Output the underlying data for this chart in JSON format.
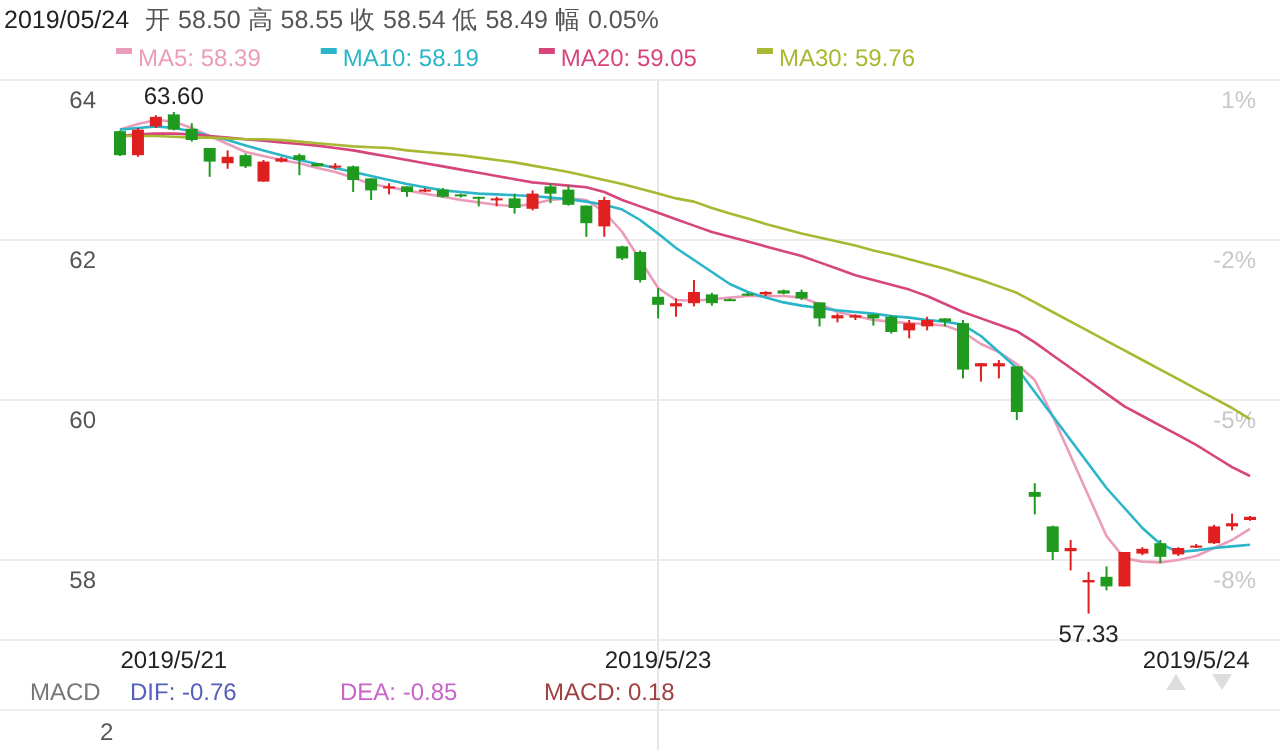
{
  "chart_data": {
    "type": "candlestick",
    "title": "2019/05/24",
    "subtitle": "开 58.50 高 58.55 收 58.54 低 58.49 幅 0.05%",
    "categories": [
      null,
      null,
      null,
      "2019/5/21",
      null,
      null,
      null,
      null,
      null,
      null,
      null,
      null,
      null,
      null,
      null,
      null,
      null,
      null,
      null,
      null,
      null,
      null,
      null,
      null,
      null,
      null,
      null,
      null,
      null,
      null,
      "2019/5/23",
      null,
      null,
      null,
      null,
      null,
      null,
      null,
      null,
      null,
      null,
      null,
      null,
      null,
      null,
      null,
      null,
      null,
      null,
      null,
      null,
      null,
      null,
      null,
      null,
      null,
      null,
      null,
      null,
      null,
      "2019/5/24",
      null,
      null,
      null
    ],
    "ohlc": [
      [
        63.36,
        63.37,
        63.05,
        63.06
      ],
      [
        63.06,
        63.4,
        63.04,
        63.38
      ],
      [
        63.42,
        63.56,
        63.4,
        63.54
      ],
      [
        63.57,
        63.6,
        63.37,
        63.38
      ],
      [
        63.39,
        63.46,
        63.23,
        63.25
      ],
      [
        63.15,
        63.15,
        62.79,
        62.98
      ],
      [
        62.96,
        63.12,
        62.89,
        63.04
      ],
      [
        63.06,
        63.08,
        62.9,
        62.92
      ],
      [
        62.73,
        63.0,
        62.73,
        62.98
      ],
      [
        62.98,
        63.04,
        62.97,
        63.02
      ],
      [
        63.06,
        63.08,
        62.81,
        63.0
      ],
      [
        62.96,
        62.96,
        62.92,
        62.92
      ],
      [
        62.92,
        62.96,
        62.88,
        62.93
      ],
      [
        62.92,
        62.93,
        62.6,
        62.75
      ],
      [
        62.77,
        62.77,
        62.5,
        62.62
      ],
      [
        62.65,
        62.71,
        62.57,
        62.67
      ],
      [
        62.67,
        62.67,
        62.54,
        62.6
      ],
      [
        62.62,
        62.65,
        62.6,
        62.63
      ],
      [
        62.63,
        62.65,
        62.53,
        62.54
      ],
      [
        62.57,
        62.58,
        62.53,
        62.55
      ],
      [
        62.54,
        62.54,
        62.42,
        62.52
      ],
      [
        62.51,
        62.54,
        62.42,
        62.52
      ],
      [
        62.52,
        62.58,
        62.33,
        62.4
      ],
      [
        62.39,
        62.62,
        62.37,
        62.58
      ],
      [
        62.67,
        62.71,
        62.46,
        62.58
      ],
      [
        62.63,
        62.68,
        62.43,
        62.44
      ],
      [
        62.43,
        62.43,
        62.04,
        62.21
      ],
      [
        62.17,
        62.54,
        62.04,
        62.5
      ],
      [
        61.92,
        61.93,
        61.75,
        61.77
      ],
      [
        61.85,
        61.87,
        61.47,
        61.5
      ],
      [
        61.29,
        61.4,
        61.02,
        61.19
      ],
      [
        61.17,
        61.27,
        61.04,
        61.21
      ],
      [
        61.21,
        61.5,
        61.17,
        61.35
      ],
      [
        61.32,
        61.34,
        61.18,
        61.21
      ],
      [
        61.26,
        61.27,
        61.24,
        61.25
      ],
      [
        61.33,
        61.34,
        61.3,
        61.31
      ],
      [
        61.32,
        61.36,
        61.3,
        61.35
      ],
      [
        61.37,
        61.38,
        61.32,
        61.33
      ],
      [
        61.35,
        61.38,
        61.25,
        61.27
      ],
      [
        61.22,
        61.22,
        60.92,
        61.02
      ],
      [
        61.02,
        61.08,
        60.97,
        61.06
      ],
      [
        61.03,
        61.07,
        61.0,
        61.06
      ],
      [
        61.07,
        61.07,
        60.93,
        61.02
      ],
      [
        61.04,
        61.06,
        60.83,
        60.85
      ],
      [
        60.87,
        61.0,
        60.77,
        60.96
      ],
      [
        60.92,
        61.04,
        60.87,
        61.0
      ],
      [
        61.02,
        61.02,
        60.92,
        60.98
      ],
      [
        60.96,
        61.0,
        60.27,
        60.38
      ],
      [
        60.42,
        60.46,
        60.23,
        60.46
      ],
      [
        60.42,
        60.5,
        60.27,
        60.46
      ],
      [
        60.42,
        60.42,
        59.75,
        59.85
      ],
      [
        58.85,
        58.96,
        58.57,
        58.79
      ],
      [
        58.42,
        58.43,
        58.0,
        58.1
      ],
      [
        58.11,
        58.25,
        57.87,
        58.15
      ],
      [
        57.72,
        57.85,
        57.33,
        57.75
      ],
      [
        57.79,
        57.92,
        57.62,
        57.67
      ],
      [
        57.67,
        58.1,
        57.67,
        58.1
      ],
      [
        58.08,
        58.16,
        58.06,
        58.14
      ],
      [
        58.21,
        58.25,
        57.96,
        58.04
      ],
      [
        58.07,
        58.16,
        58.05,
        58.15
      ],
      [
        58.17,
        58.2,
        58.15,
        58.18
      ],
      [
        58.21,
        58.44,
        58.2,
        58.42
      ],
      [
        58.42,
        58.58,
        58.37,
        58.46
      ],
      [
        58.5,
        58.55,
        58.49,
        58.54
      ]
    ],
    "series": [
      {
        "name": "MA5: 58.39",
        "type": "line",
        "color": "#eb9cbb",
        "values": [
          63.38,
          63.45,
          63.5,
          63.48,
          63.4,
          63.3,
          63.2,
          63.1,
          63.05,
          63.0,
          62.96,
          62.9,
          62.85,
          62.78,
          62.7,
          62.66,
          62.62,
          62.58,
          62.54,
          62.5,
          62.47,
          62.44,
          62.42,
          62.45,
          62.5,
          62.52,
          62.5,
          62.35,
          62.1,
          61.75,
          61.4,
          61.25,
          61.24,
          61.26,
          61.28,
          61.3,
          61.3,
          61.3,
          61.28,
          61.2,
          61.1,
          61.05,
          61.0,
          60.98,
          60.96,
          60.95,
          60.93,
          60.85,
          60.7,
          60.6,
          60.45,
          60.25,
          59.8,
          59.3,
          58.8,
          58.3,
          58.02,
          57.98,
          57.97,
          58.0,
          58.05,
          58.15,
          58.25,
          58.39
        ]
      },
      {
        "name": "MA10: 58.19",
        "type": "line",
        "color": "#2bb5c8",
        "values": [
          63.38,
          63.4,
          63.42,
          63.4,
          63.36,
          63.3,
          63.25,
          63.18,
          63.12,
          63.06,
          63.0,
          62.95,
          62.9,
          62.85,
          62.8,
          62.75,
          62.7,
          62.66,
          62.62,
          62.6,
          62.58,
          62.57,
          62.56,
          62.55,
          62.53,
          62.51,
          62.48,
          62.44,
          62.38,
          62.25,
          62.08,
          61.9,
          61.75,
          61.6,
          61.45,
          61.35,
          61.28,
          61.22,
          61.18,
          61.15,
          61.12,
          61.1,
          61.08,
          61.05,
          61.03,
          61.0,
          60.98,
          60.94,
          60.8,
          60.6,
          60.4,
          60.1,
          59.8,
          59.5,
          59.2,
          58.9,
          58.65,
          58.4,
          58.2,
          58.1,
          58.12,
          58.15,
          58.17,
          58.19
        ]
      },
      {
        "name": "MA20: 59.05",
        "type": "line",
        "color": "#d6467c",
        "values": [
          63.3,
          63.32,
          63.33,
          63.33,
          63.32,
          63.3,
          63.28,
          63.26,
          63.24,
          63.22,
          63.2,
          63.18,
          63.15,
          63.12,
          63.08,
          63.04,
          63.0,
          62.96,
          62.92,
          62.88,
          62.84,
          62.8,
          62.76,
          62.72,
          62.7,
          62.68,
          62.66,
          62.6,
          62.5,
          62.42,
          62.34,
          62.26,
          62.18,
          62.1,
          62.04,
          61.98,
          61.92,
          61.86,
          61.8,
          61.72,
          61.64,
          61.56,
          61.5,
          61.44,
          61.38,
          61.3,
          61.2,
          61.1,
          61.02,
          60.94,
          60.86,
          60.72,
          60.56,
          60.4,
          60.24,
          60.08,
          59.92,
          59.8,
          59.68,
          59.56,
          59.44,
          59.3,
          59.16,
          59.05
        ]
      },
      {
        "name": "MA30: 59.76",
        "type": "line",
        "color": "#a8b832",
        "values": [
          63.3,
          63.3,
          63.3,
          63.29,
          63.28,
          63.28,
          63.27,
          63.26,
          63.26,
          63.25,
          63.23,
          63.21,
          63.19,
          63.17,
          63.16,
          63.15,
          63.12,
          63.1,
          63.08,
          63.06,
          63.03,
          63.0,
          62.97,
          62.93,
          62.89,
          62.85,
          62.8,
          62.75,
          62.7,
          62.64,
          62.58,
          62.52,
          62.48,
          62.4,
          62.33,
          62.27,
          62.2,
          62.14,
          62.08,
          62.03,
          61.98,
          61.93,
          61.87,
          61.82,
          61.76,
          61.7,
          61.64,
          61.57,
          61.5,
          61.42,
          61.34,
          61.22,
          61.1,
          60.98,
          60.86,
          60.74,
          60.62,
          60.5,
          60.38,
          60.26,
          60.14,
          60.02,
          59.9,
          59.76
        ]
      }
    ],
    "ylim": [
      57,
      64
    ],
    "yticks": [
      58,
      60,
      62,
      64
    ],
    "y2lim": [
      -9.5,
      1
    ],
    "y2ticks": [
      {
        "value": 1,
        "label": "1%"
      },
      {
        "value": -2,
        "label": "-2%"
      },
      {
        "value": -5,
        "label": "-5%"
      },
      {
        "value": -8,
        "label": "-8%"
      }
    ],
    "grid": "y",
    "legend": "top",
    "ref_lines": [
      {
        "axis": "x",
        "value": "2019/5/23",
        "color": "#e6e6e6"
      }
    ],
    "annotations": [
      {
        "text": "63.60",
        "y": 63.6
      },
      {
        "text": "57.33",
        "y": 57.33
      },
      "MACD",
      "DIF: -0.76",
      "DEA: -0.85",
      "MACD: 0.18",
      "2"
    ]
  }
}
